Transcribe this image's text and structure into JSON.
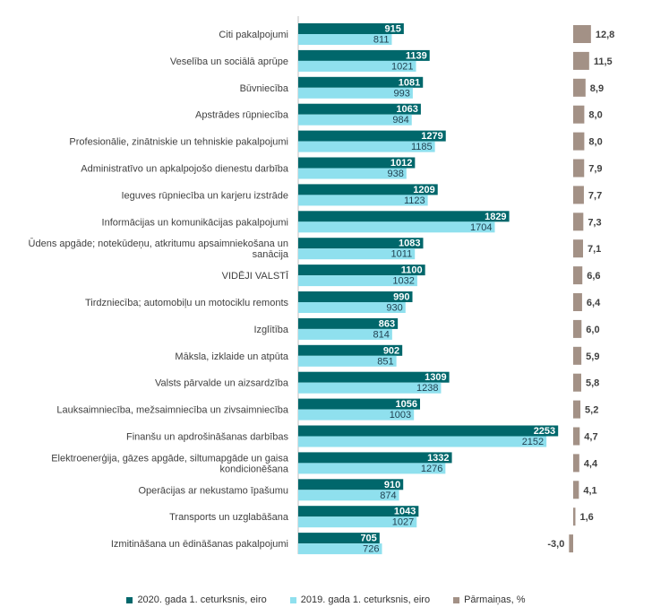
{
  "chart_data": {
    "type": "bar",
    "orientation": "horizontal",
    "title": "",
    "xlabel": "",
    "ylabel": "",
    "categories": [
      [
        "Citi pakalpojumi"
      ],
      [
        "Veselība un sociālā aprūpe"
      ],
      [
        "Būvniecība"
      ],
      [
        "Apstrādes rūpniecība"
      ],
      [
        "Profesionālie, zinātniskie un tehniskie pakalpojumi"
      ],
      [
        "Administratīvo un apkalpojošo dienestu darbība"
      ],
      [
        "Ieguves rūpniecība un karjeru izstrāde"
      ],
      [
        "Informācijas un komunikācijas pakalpojumi"
      ],
      [
        "Ūdens apgāde; notekūdeņu, atkritumu apsaimniekošana un",
        "sanācija"
      ],
      [
        "VIDĒJI VALSTĪ"
      ],
      [
        "Tirdzniecība; automobiļu un motociklu remonts"
      ],
      [
        "Izglītība"
      ],
      [
        "Māksla, izklaide un atpūta"
      ],
      [
        "Valsts pārvalde un aizsardzība"
      ],
      [
        "Lauksaimniecība, mežsaimniecība un zivsaimniecība"
      ],
      [
        "Finanšu un apdrošināšanas darbības"
      ],
      [
        "Elektroenerģija, gāzes apgāde, siltumapgāde un gaisa",
        "kondicionēšana"
      ],
      [
        "Operācijas ar nekustamo īpašumu"
      ],
      [
        "Transports un uzglabāšana"
      ],
      [
        "Izmitināšana un ēdināšanas pakalpojumi"
      ]
    ],
    "series": [
      {
        "name": "2020. gada 1. ceturksnis, eiro",
        "color": "#00676b",
        "values": [
          915,
          1139,
          1081,
          1063,
          1279,
          1012,
          1209,
          1829,
          1083,
          1100,
          990,
          863,
          902,
          1309,
          1056,
          2253,
          1332,
          910,
          1043,
          705
        ],
        "labels": [
          "915",
          "1139",
          "1081",
          "1063",
          "1279",
          "1012",
          "1209",
          "1829",
          "1083",
          "1100",
          "990",
          "863",
          "902",
          "1309",
          "1056",
          "2253",
          "1332",
          "910",
          "1043",
          "705"
        ]
      },
      {
        "name": "2019. gada 1. ceturksnis, eiro",
        "color": "#8fe0ee",
        "values": [
          811,
          1021,
          993,
          984,
          1185,
          938,
          1123,
          1704,
          1011,
          1032,
          930,
          814,
          851,
          1238,
          1003,
          2152,
          1276,
          874,
          1027,
          726
        ],
        "labels": [
          "811",
          "1021",
          "993",
          "984",
          "1185",
          "938",
          "1123",
          "1704",
          "1011",
          "1032",
          "930",
          "814",
          "851",
          "1238",
          "1003",
          "2152",
          "1276",
          "874",
          "1027",
          "726"
        ]
      },
      {
        "name": "Pārmaiņas, %",
        "color": "#a39186",
        "values": [
          12.8,
          11.5,
          8.9,
          8.0,
          8.0,
          7.9,
          7.7,
          7.3,
          7.1,
          6.6,
          6.4,
          6.0,
          5.9,
          5.8,
          5.2,
          4.7,
          4.4,
          4.1,
          1.6,
          -3.0
        ],
        "labels": [
          "12,8",
          "11,5",
          "8,9",
          "8,0",
          "8,0",
          "7,9",
          "7,7",
          "7,3",
          "7,1",
          "6,6",
          "6,4",
          "6,0",
          "5,9",
          "5,8",
          "5,2",
          "4,7",
          "4,4",
          "4,1",
          "1,6",
          "-3,0"
        ]
      }
    ],
    "legend": "bottom"
  }
}
